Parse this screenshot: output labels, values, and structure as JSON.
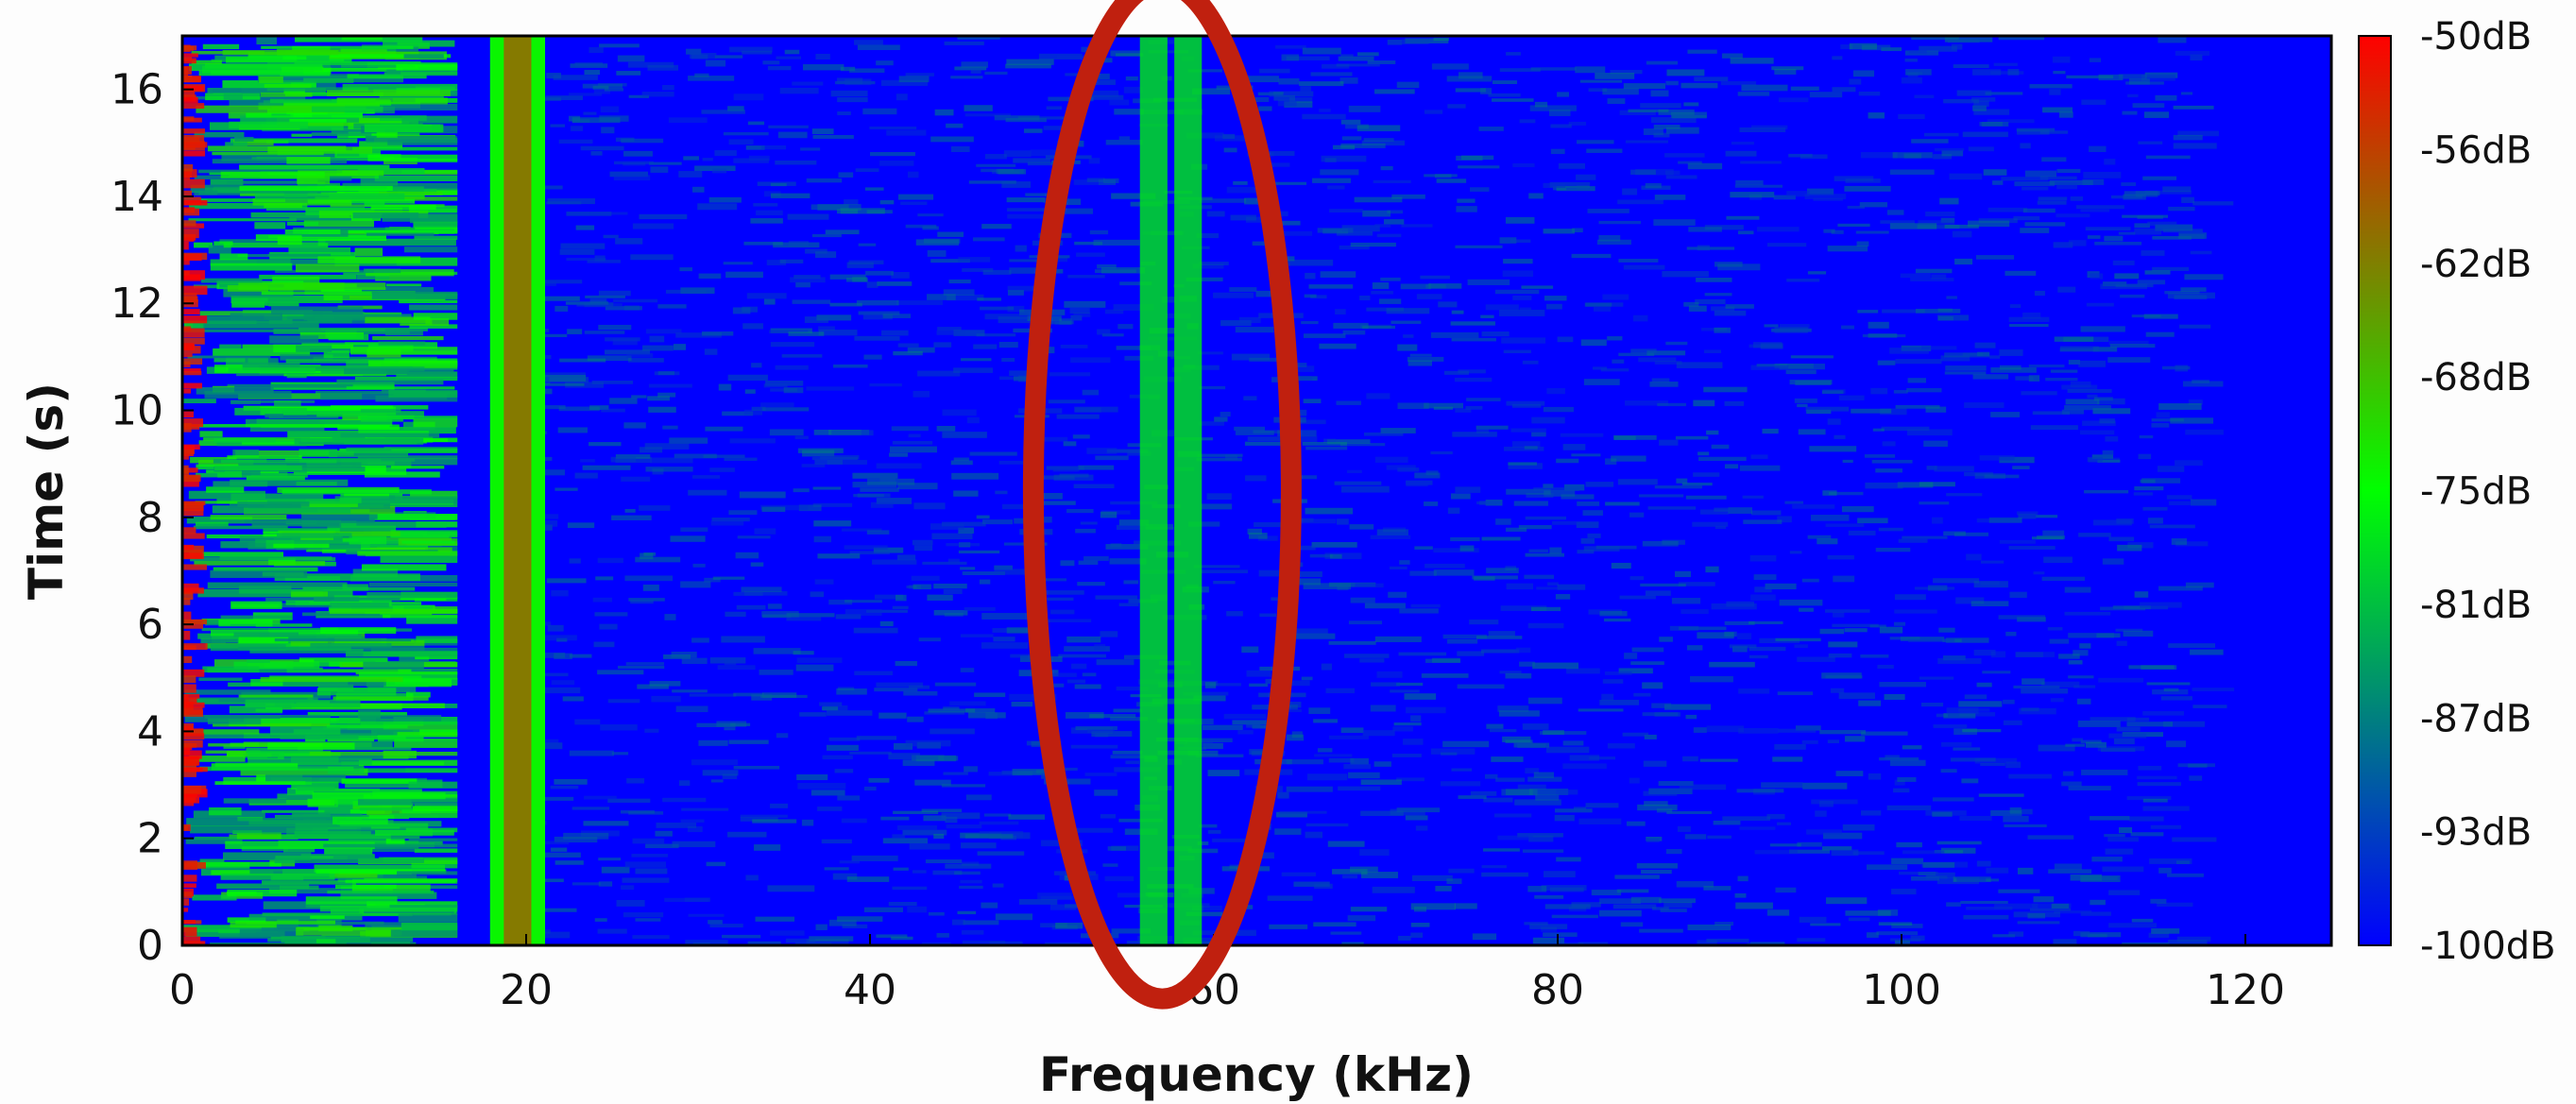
{
  "chart_data": {
    "type": "heatmap",
    "title": "",
    "xlabel": "Frequency (kHz)",
    "ylabel": "Time (s)",
    "xlim": [
      0,
      125
    ],
    "ylim": [
      0,
      17
    ],
    "x_ticks": [
      0,
      20,
      40,
      60,
      80,
      100,
      120
    ],
    "y_ticks": [
      0,
      2,
      4,
      6,
      8,
      10,
      12,
      14,
      16
    ],
    "colorbar": {
      "labels": [
        "-50dB",
        "-56dB",
        "-62dB",
        "-68dB",
        "-75dB",
        "-81dB",
        "-87dB",
        "-93dB",
        "-100dB"
      ],
      "range_db": [
        -100,
        -50
      ],
      "colors": [
        "#0000ff",
        "#00ff00",
        "#ff0000"
      ]
    },
    "features": [
      {
        "kind": "broadband-noise",
        "x_range_khz": [
          0,
          16
        ],
        "level_db": -75
      },
      {
        "kind": "narrowband-tone",
        "x_khz": 19.5,
        "level_db": -62
      },
      {
        "kind": "narrowband-tone-pair",
        "x_khz": [
          56.5,
          58.5
        ],
        "level_db": -78
      },
      {
        "kind": "noise-floor",
        "x_range_khz": [
          20,
          117
        ],
        "level_db": -92
      },
      {
        "kind": "silent",
        "x_range_khz": [
          117,
          125
        ],
        "level_db": -100
      }
    ],
    "annotations": [
      {
        "shape": "ellipse",
        "color": "#c0200f",
        "center_khz": 57,
        "center_s": 8.5,
        "rx_khz": 7.5,
        "ry_s": 9.5
      }
    ],
    "grid": false
  }
}
